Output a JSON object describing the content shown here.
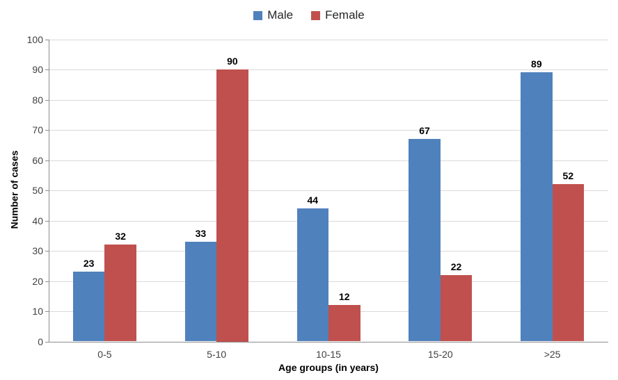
{
  "chart_data": {
    "type": "bar",
    "categories": [
      "0-5",
      "5-10",
      "10-15",
      "15-20",
      ">25"
    ],
    "series": [
      {
        "name": "Male",
        "color": "#4F81BD",
        "values": [
          23,
          33,
          44,
          67,
          89
        ]
      },
      {
        "name": "Female",
        "color": "#C0504D",
        "values": [
          32,
          90,
          12,
          22,
          52
        ]
      }
    ],
    "title": "",
    "xlabel": "Age groups (in years)",
    "ylabel": "Number of cases",
    "ylim": [
      0,
      100
    ],
    "ytick_step": 10,
    "ytick_labels": [
      "0",
      "10",
      "20",
      "30",
      "40",
      "50",
      "60",
      "70",
      "80",
      "90",
      "100"
    ],
    "grid": true,
    "legend_position": "top",
    "data_labels": true,
    "colors": {
      "male_bar": "#4F81BD",
      "female_bar": "#C0504D",
      "gridline": "#D9D9D9",
      "axis": "#8C8C8C",
      "tick_label_text": "#404040",
      "data_label_text": "#000000",
      "background": "#FFFFFF"
    }
  }
}
